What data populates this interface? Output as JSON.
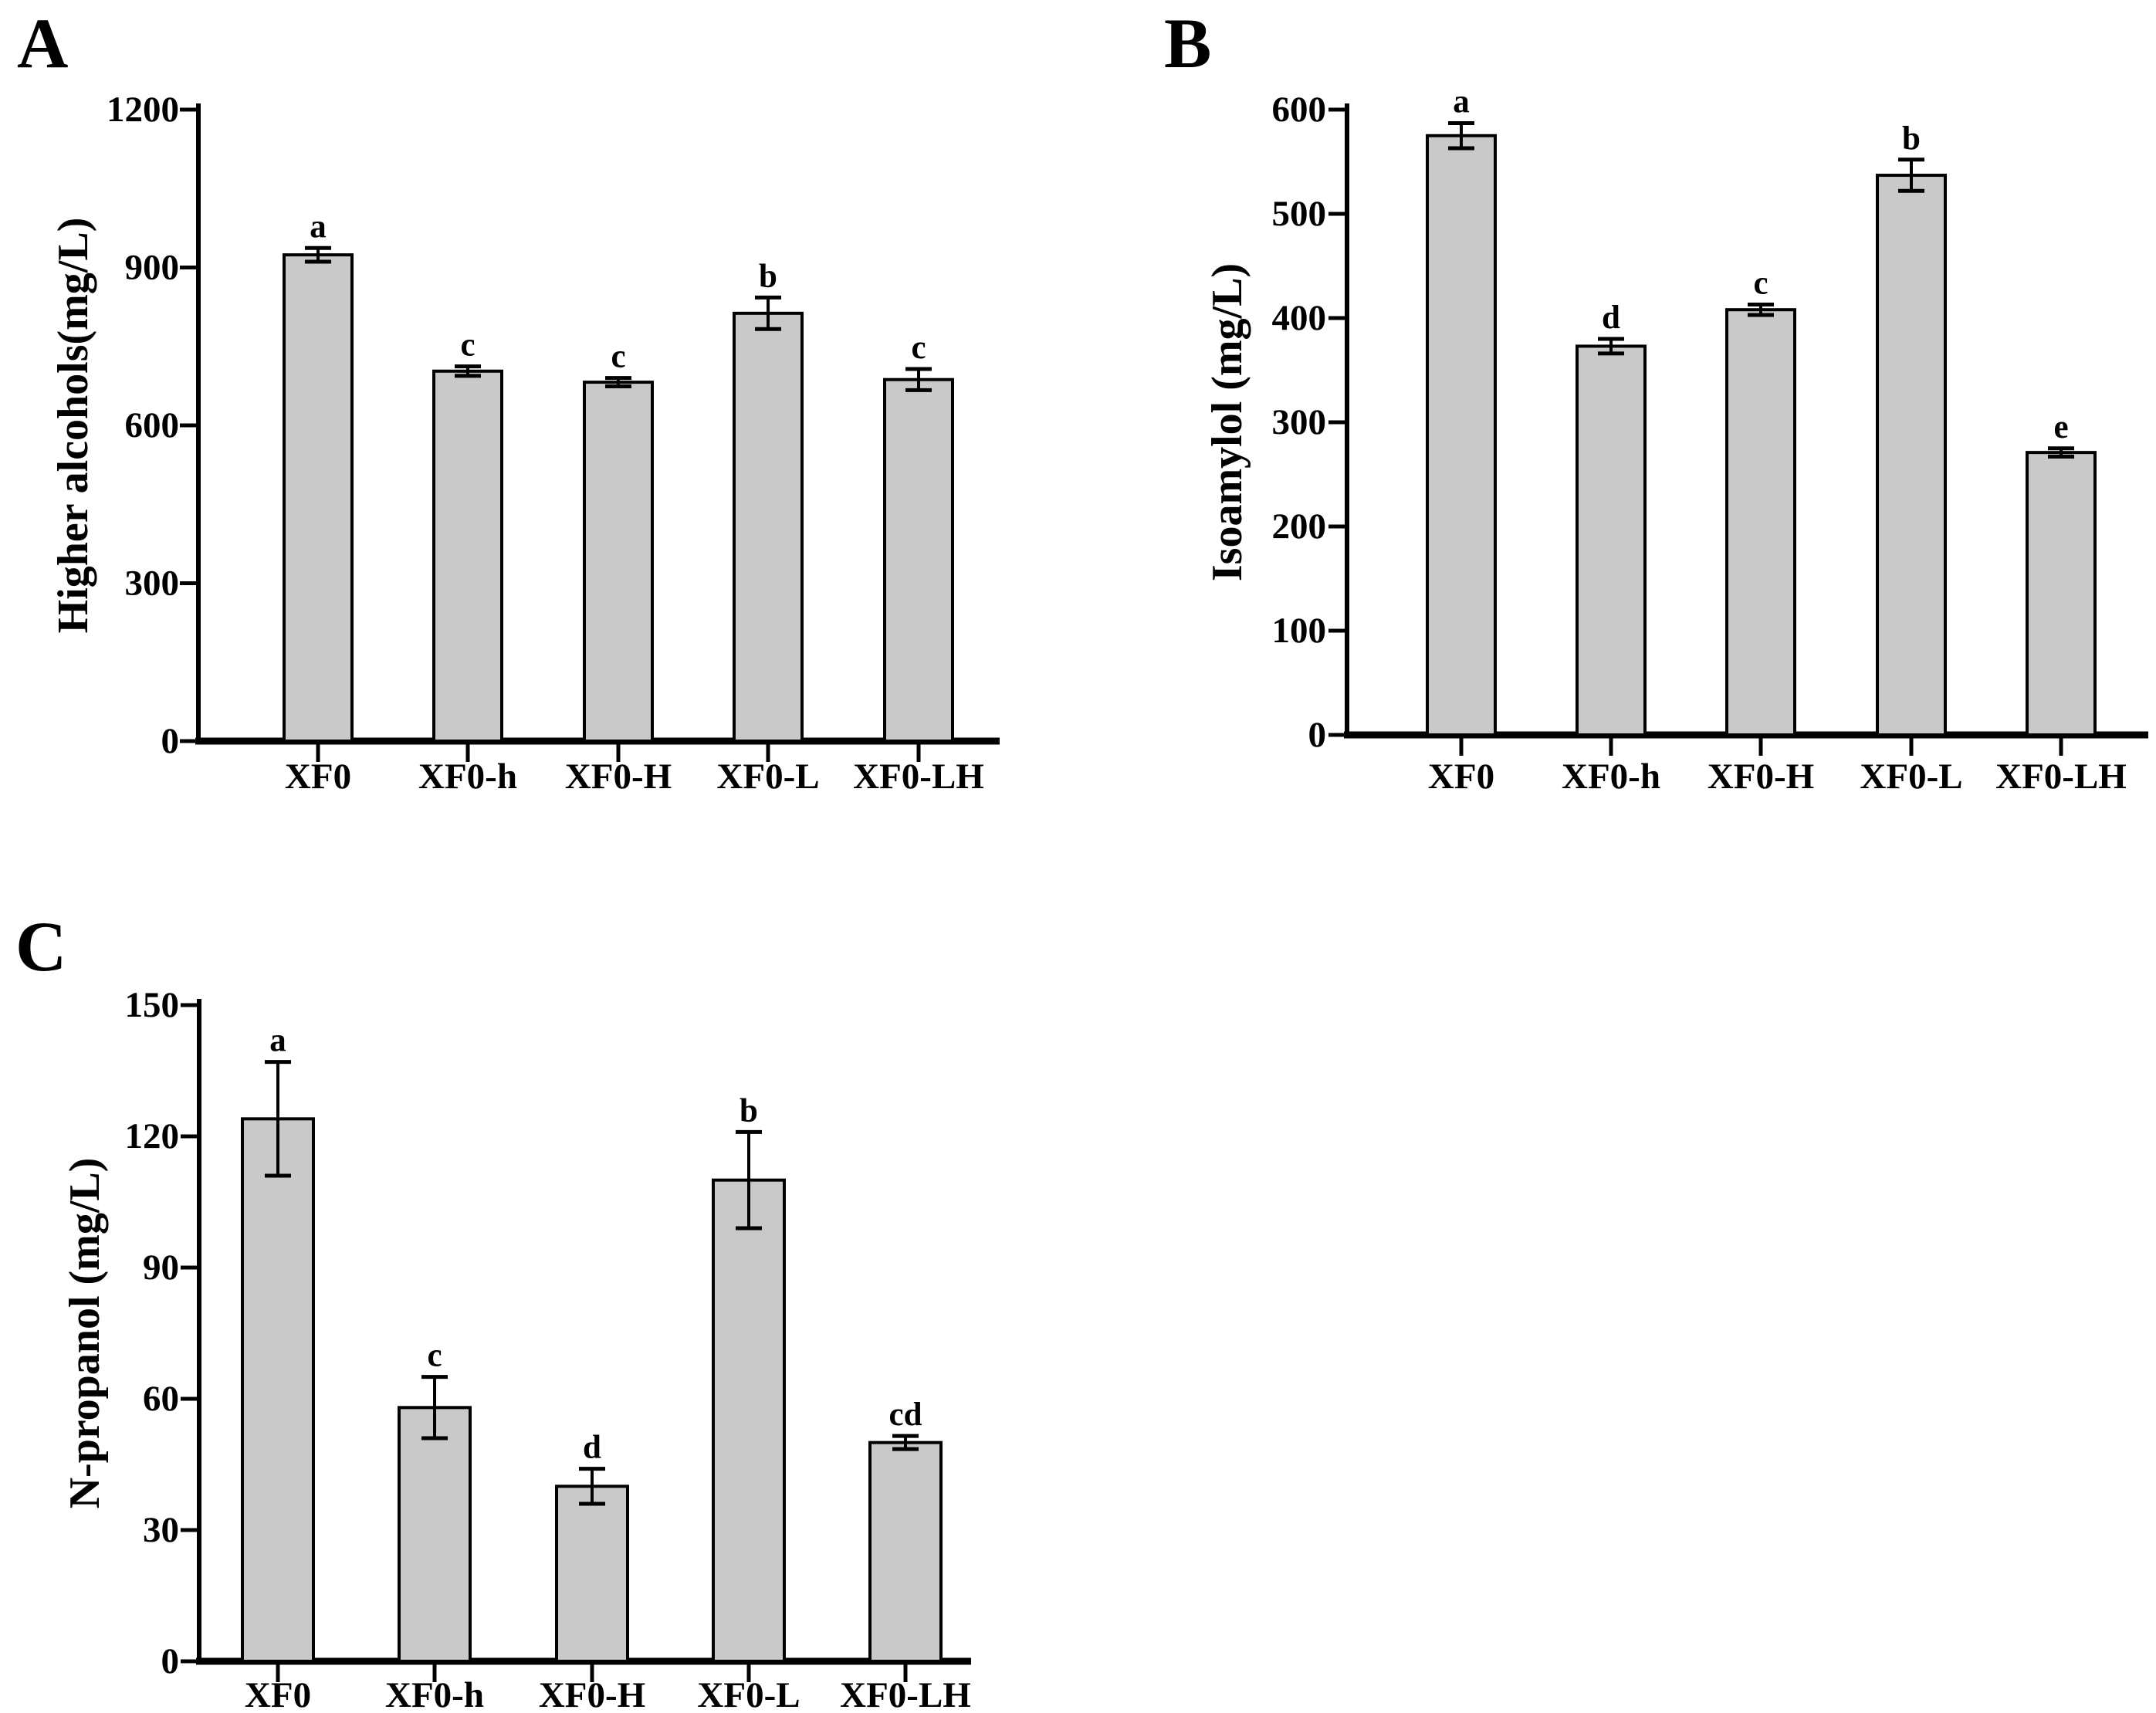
{
  "figure": {
    "panel_labels": [
      "A",
      "B",
      "C"
    ],
    "background_color": "#ffffff",
    "bar_fill_color": "#c9c9c9",
    "bar_border_color": "#000000",
    "axis_color": "#000000"
  },
  "chart_data": [
    {
      "type": "bar",
      "panel": "A",
      "title": "",
      "xlabel": "",
      "ylabel": "Higher alcohols(mg/L)",
      "categories": [
        "XF0",
        "XF0-h",
        "XF0-H",
        "XF0-L",
        "XF0-LH"
      ],
      "values": [
        924,
        703,
        682,
        813,
        687
      ],
      "errors": [
        13,
        9,
        8,
        30,
        20
      ],
      "sig_letters": [
        "a",
        "c",
        "c",
        "b",
        "c"
      ],
      "ylim": [
        0,
        1200
      ],
      "yticks": [
        0,
        300,
        600,
        900,
        1200
      ],
      "grid": false,
      "legend": "none",
      "bar_color": "#c9c9c9"
    },
    {
      "type": "bar",
      "panel": "B",
      "title": "",
      "xlabel": "",
      "ylabel": "Isoamylol (mg/L)",
      "categories": [
        "XF0",
        "XF0-h",
        "XF0-H",
        "XF0-L",
        "XF0-LH"
      ],
      "values": [
        575,
        373,
        408,
        537,
        271
      ],
      "errors": [
        12,
        7,
        5,
        15,
        4
      ],
      "sig_letters": [
        "a",
        "d",
        "c",
        "b",
        "e"
      ],
      "ylim": [
        0,
        600
      ],
      "yticks": [
        0,
        100,
        200,
        300,
        400,
        500,
        600
      ],
      "grid": false,
      "legend": "none",
      "bar_color": "#c9c9c9"
    },
    {
      "type": "bar",
      "panel": "C",
      "title": "",
      "xlabel": "",
      "ylabel": "N-propanol (mg/L)",
      "categories": [
        "XF0",
        "XF0-h",
        "XF0-H",
        "XF0-L",
        "XF0-LH"
      ],
      "values": [
        124,
        58,
        40,
        110,
        50
      ],
      "errors": [
        13,
        7,
        4,
        11,
        1.5
      ],
      "sig_letters": [
        "a",
        "c",
        "d",
        "b",
        "cd"
      ],
      "ylim": [
        0,
        150
      ],
      "yticks": [
        0,
        30,
        60,
        90,
        120,
        150
      ],
      "grid": false,
      "legend": "none",
      "bar_color": "#c9c9c9"
    }
  ]
}
